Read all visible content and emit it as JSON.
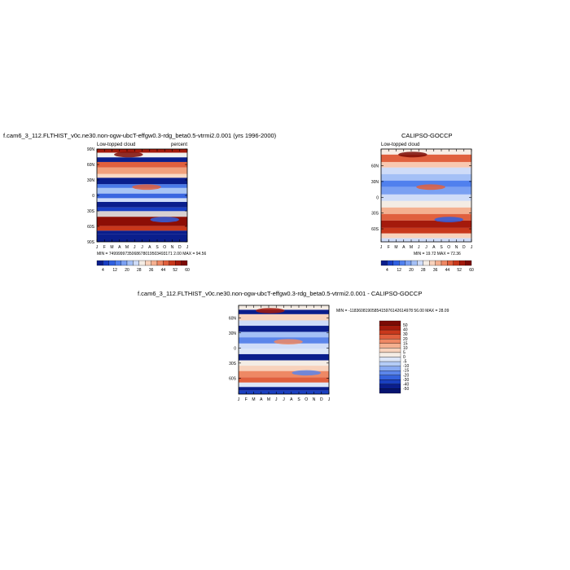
{
  "panels": [
    {
      "title": "f.cam6_3_112.FLTHIST_v0c.ne30.non-ogw-ubcT-effgw0.3-rdg_beta0.5-vtrmi2.0.001 (yrs 1996-2000)",
      "left_label": "Low-topped cloud",
      "right_label": "percent",
      "stats": "MIN = 7499999735068678019503493171 2.00 MAX = 94.56"
    },
    {
      "title": "CALIPSO-GOCCP",
      "left_label": "Low-topped cloud",
      "right_label": "",
      "stats": "MIN = 19.72 MAX = 72.36"
    },
    {
      "title": "f.cam6_3_112.FLTHIST_v0c.ne30.non-ogw-ubcT-effgw0.3-rdg_beta0.5-vtrmi2.0.001 - CALIPSO-GOCCP",
      "left_label": "",
      "right_label": "",
      "stats": "MIN = -1183608190585415976142614978 56.00 MAX = 28.09"
    }
  ],
  "chart_data": [
    {
      "type": "heatmap",
      "title": "f.cam6_3_112.FLTHIST_v0c.ne30.non-ogw-ubcT-effgw0.3-rdg_beta0.5-vtrmi2.0.001 (yrs 1996-2000)",
      "variable": "Low-topped cloud",
      "units": "percent",
      "x_ticks": [
        "J",
        "F",
        "M",
        "A",
        "M",
        "J",
        "J",
        "A",
        "S",
        "O",
        "N",
        "D",
        "J"
      ],
      "y_ticks": [
        "90N",
        "60N",
        "30N",
        "0",
        "30S",
        "60S",
        "90S"
      ],
      "colorbar_ticks": [
        "4",
        "12",
        "20",
        "28",
        "36",
        "44",
        "52",
        "60"
      ],
      "colorbar_colors": [
        "#0a1e8c",
        "#1a3fc4",
        "#3060e0",
        "#5080ee",
        "#7aa0f2",
        "#a4c0f6",
        "#cfdcf8",
        "#f4ece4",
        "#f8d2bc",
        "#f4b090",
        "#ee8864",
        "#e0603e",
        "#c8381c",
        "#a41a0c",
        "#7c0a04"
      ],
      "grid": false,
      "min": "7499999735068678019503493171 2.00",
      "max": "94.56"
    },
    {
      "type": "heatmap",
      "title": "CALIPSO-GOCCP",
      "variable": "Low-topped cloud",
      "x_ticks": [
        "J",
        "F",
        "M",
        "A",
        "M",
        "J",
        "J",
        "A",
        "S",
        "O",
        "N",
        "D",
        "J"
      ],
      "y_ticks": [
        "60N",
        "30N",
        "0",
        "30S",
        "60S"
      ],
      "colorbar_ticks": [
        "4",
        "12",
        "20",
        "28",
        "36",
        "44",
        "52",
        "60"
      ],
      "colorbar_colors": [
        "#0a1e8c",
        "#1a3fc4",
        "#3060e0",
        "#5080ee",
        "#7aa0f2",
        "#a4c0f6",
        "#cfdcf8",
        "#f4ece4",
        "#f8d2bc",
        "#f4b090",
        "#ee8864",
        "#e0603e",
        "#c8381c",
        "#a41a0c",
        "#7c0a04"
      ],
      "grid": false,
      "min": "19.72",
      "max": "72.36"
    },
    {
      "type": "heatmap",
      "title": "f.cam6_3_112.FLTHIST_v0c.ne30.non-ogw-ubcT-effgw0.3-rdg_beta0.5-vtrmi2.0.001 - CALIPSO-GOCCP",
      "x_ticks": [
        "J",
        "F",
        "M",
        "A",
        "M",
        "J",
        "J",
        "A",
        "S",
        "O",
        "N",
        "D",
        "J"
      ],
      "y_ticks": [
        "60N",
        "30N",
        "0",
        "30S",
        "60S"
      ],
      "colorbar_ticks": [
        "50",
        "40",
        "30",
        "20",
        "15",
        "10",
        "5",
        "0",
        "-5",
        "-10",
        "-15",
        "-20",
        "-30",
        "-40",
        "-50"
      ],
      "colorbar_colors": [
        "#7c0a04",
        "#a41a0c",
        "#c8381c",
        "#e0603e",
        "#ee8864",
        "#f4b090",
        "#f8d2bc",
        "#f4ece4",
        "#dce6f8",
        "#b4ccf6",
        "#88aaf2",
        "#5c86ea",
        "#3462dc",
        "#1a40c0",
        "#0a1e8c",
        "#061470"
      ],
      "grid": false,
      "min": "-1183608190585415976142614978 56.00",
      "max": "28.09"
    }
  ]
}
